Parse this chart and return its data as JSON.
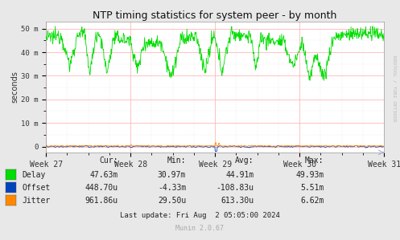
{
  "title": "NTP timing statistics for system peer - by month",
  "ylabel": "seconds",
  "bg_color": "#e8e8e8",
  "plot_bg_color": "#ffffff",
  "grid_color": "#ffaaaa",
  "grid_minor_color": "#d8d8d8",
  "x_tick_labels": [
    "Week 27",
    "Week 28",
    "Week 29",
    "Week 30",
    "Week 31"
  ],
  "y_tick_labels": [
    "0",
    "10 m",
    "20 m",
    "30 m",
    "40 m",
    "50 m"
  ],
  "y_tick_values": [
    0,
    0.01,
    0.02,
    0.03,
    0.04,
    0.05
  ],
  "y_max": 0.053,
  "y_min": -0.0025,
  "delay_color": "#00dd00",
  "offset_color": "#0044bb",
  "jitter_color": "#ff8800",
  "legend_items": [
    "Delay",
    "Offset",
    "Jitter"
  ],
  "legend_colors": [
    "#00dd00",
    "#0044bb",
    "#ff8800"
  ],
  "stats_labels": [
    "Cur:",
    "Min:",
    "Avg:",
    "Max:"
  ],
  "delay_stats": [
    "47.63m",
    "30.97m",
    "44.91m",
    "49.93m"
  ],
  "offset_stats": [
    "448.70u",
    "-4.33m",
    "-108.83u",
    "5.51m"
  ],
  "jitter_stats": [
    "961.86u",
    "29.50u",
    "613.30u",
    "6.62m"
  ],
  "last_update": "Last update: Fri Aug  2 05:05:00 2024",
  "munin_version": "Munin 2.0.67",
  "watermark": "RRDTOOL / TOBI OETIKER",
  "num_points": 800
}
